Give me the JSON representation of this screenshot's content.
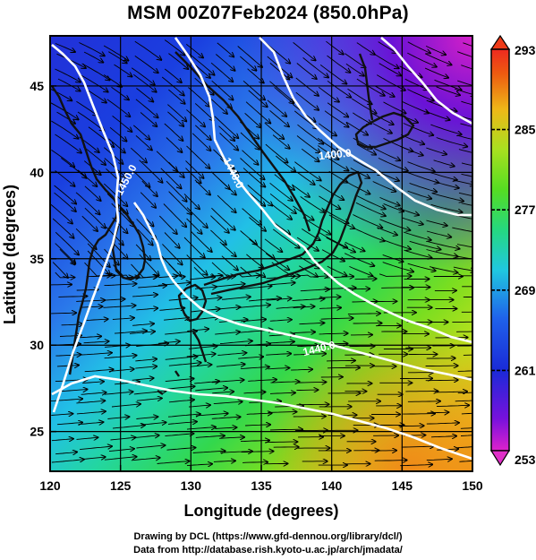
{
  "title": "MSM 00Z07Feb2024 (850.0hPa)",
  "xlabel": "Longitude (degrees)",
  "ylabel": "Latitude  (degrees)",
  "xticks": [
    "120",
    "125",
    "130",
    "135",
    "140",
    "145",
    "150"
  ],
  "yticks": [
    "25",
    "30",
    "35",
    "40",
    "45"
  ],
  "colorbar": {
    "labels": [
      "293",
      "285",
      "277",
      "269",
      "261",
      "253"
    ],
    "stops": [
      "#dd22cc",
      "#7711dd",
      "#1a2ad8",
      "#1f62ea",
      "#20c8e0",
      "#25d880",
      "#55dd22",
      "#a8e020",
      "#eeb818",
      "#ee5a10",
      "#ee2a20"
    ]
  },
  "contour_labels": [
    "1400.0",
    "1450.0",
    "1440.0",
    "1440.0"
  ],
  "credits": {
    "line1": "Drawing by DCL (https://www.gfd-dennou.org/library/dcl/)",
    "line2": "Data from http://database.rish.kyoto-u.ac.jp/arch/jmadata/"
  },
  "colors": {
    "contour": "#ffffff",
    "coast": "#111111",
    "streamline": "#000000"
  }
}
